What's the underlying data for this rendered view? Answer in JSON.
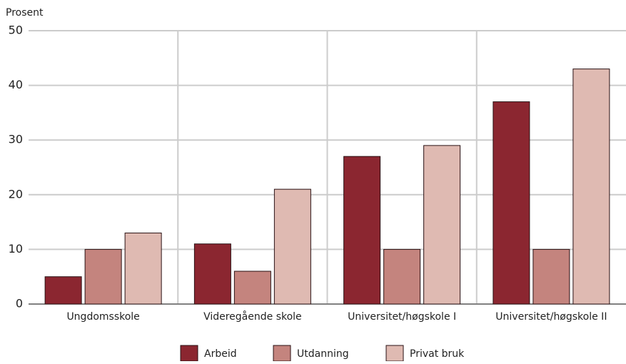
{
  "chart_data": {
    "type": "bar",
    "y_label": "Prosent",
    "categories": [
      "Ungdomsskole",
      "Videregående skole",
      "Universitet/høgskole I",
      "Universitet/høgskole II"
    ],
    "series": [
      {
        "name": "Arbeid",
        "color": "#8b2630",
        "values": [
          5,
          11,
          27,
          37
        ]
      },
      {
        "name": "Utdanning",
        "color": "#c4847e",
        "values": [
          10,
          6,
          10,
          10
        ]
      },
      {
        "name": "Privat bruk",
        "color": "#dfbab2",
        "values": [
          13,
          21,
          29,
          43
        ]
      }
    ],
    "ylim": [
      0,
      50
    ],
    "yticks": [
      0,
      10,
      20,
      30,
      40,
      50
    ],
    "grid": true,
    "legend": "bottom"
  }
}
